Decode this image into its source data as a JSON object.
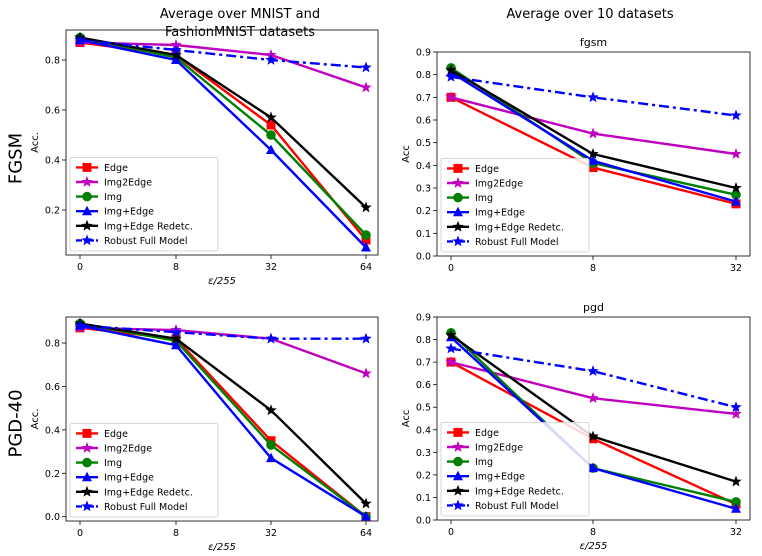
{
  "figure": {
    "col_titles": [
      "Average over MNIST and\nFashionMNIST datasets",
      "Average over 10 datasets"
    ],
    "row_labels": [
      "FGSM",
      "PGD-40"
    ]
  },
  "colors": {
    "Edge": "#ff0000",
    "Img2Edge": "#bf00bf",
    "Img": "#008000",
    "Img+Edge": "#0000ff",
    "Img+Edge Redetc.": "#000000",
    "Robust Full Model": "#0000ff"
  },
  "markers": {
    "Edge": "square",
    "Img2Edge": "star",
    "Img": "circle",
    "Img+Edge": "triangle",
    "Img+Edge Redetc.": "star",
    "Robust Full Model": "star"
  },
  "chart_data": [
    {
      "type": "line",
      "title": "",
      "xlabel": "ε/255",
      "ylabel": "Acc.",
      "categories": [
        "0",
        "8",
        "32",
        "64"
      ],
      "ylim": [
        0.02,
        0.92
      ],
      "yticks": [
        0.2,
        0.4,
        0.6,
        0.8
      ],
      "ytick_labels": [
        "0.2",
        "0.4",
        "0.6",
        "0.8"
      ],
      "legend": "lower-left",
      "series": [
        {
          "name": "Edge",
          "values": [
            0.87,
            0.82,
            0.54,
            0.08
          ]
        },
        {
          "name": "Img2Edge",
          "values": [
            0.87,
            0.86,
            0.82,
            0.69
          ]
        },
        {
          "name": "Img",
          "values": [
            0.89,
            0.81,
            0.5,
            0.1
          ]
        },
        {
          "name": "Img+Edge",
          "values": [
            0.88,
            0.8,
            0.44,
            0.05
          ]
        },
        {
          "name": "Img+Edge Redetc.",
          "values": [
            0.89,
            0.82,
            0.57,
            0.21
          ]
        },
        {
          "name": "Robust Full Model",
          "values": [
            0.88,
            0.84,
            0.8,
            0.77
          ]
        }
      ]
    },
    {
      "type": "line",
      "title": "fgsm",
      "xlabel": "",
      "ylabel": "Acc",
      "categories": [
        "0",
        "8",
        "32"
      ],
      "ylim": [
        0.0,
        0.9
      ],
      "yticks": [
        0.0,
        0.1,
        0.2,
        0.3,
        0.4,
        0.5,
        0.6,
        0.7,
        0.8,
        0.9
      ],
      "ytick_labels": [
        "0.0",
        "0.1",
        "0.2",
        "0.3",
        "0.4",
        "0.5",
        "0.6",
        "0.7",
        "0.8",
        "0.9"
      ],
      "legend": "lower-left",
      "series": [
        {
          "name": "Edge",
          "values": [
            0.7,
            0.39,
            0.23
          ]
        },
        {
          "name": "Img2Edge",
          "values": [
            0.7,
            0.54,
            0.45
          ]
        },
        {
          "name": "Img",
          "values": [
            0.83,
            0.41,
            0.27
          ]
        },
        {
          "name": "Img+Edge",
          "values": [
            0.81,
            0.42,
            0.24
          ]
        },
        {
          "name": "Img+Edge Redetc.",
          "values": [
            0.82,
            0.45,
            0.3
          ]
        },
        {
          "name": "Robust Full Model",
          "values": [
            0.79,
            0.7,
            0.62
          ]
        }
      ]
    },
    {
      "type": "line",
      "title": "",
      "xlabel": "ε/255",
      "ylabel": "Acc.",
      "categories": [
        "0",
        "8",
        "32",
        "64"
      ],
      "ylim": [
        -0.02,
        0.92
      ],
      "yticks": [
        0.0,
        0.2,
        0.4,
        0.6,
        0.8
      ],
      "ytick_labels": [
        "0.0",
        "0.2",
        "0.4",
        "0.6",
        "0.8"
      ],
      "legend": "lower-left",
      "series": [
        {
          "name": "Edge",
          "values": [
            0.87,
            0.82,
            0.35,
            0.0
          ]
        },
        {
          "name": "Img2Edge",
          "values": [
            0.87,
            0.86,
            0.82,
            0.66
          ]
        },
        {
          "name": "Img",
          "values": [
            0.89,
            0.81,
            0.33,
            0.0
          ]
        },
        {
          "name": "Img+Edge",
          "values": [
            0.88,
            0.79,
            0.27,
            0.0
          ]
        },
        {
          "name": "Img+Edge Redetc.",
          "values": [
            0.89,
            0.82,
            0.49,
            0.06
          ]
        },
        {
          "name": "Robust Full Model",
          "values": [
            0.88,
            0.85,
            0.82,
            0.82
          ]
        }
      ]
    },
    {
      "type": "line",
      "title": "pgd",
      "xlabel": "ε/255",
      "ylabel": "Acc",
      "categories": [
        "0",
        "8",
        "32"
      ],
      "ylim": [
        0.0,
        0.9
      ],
      "yticks": [
        0.0,
        0.1,
        0.2,
        0.3,
        0.4,
        0.5,
        0.6,
        0.7,
        0.8,
        0.9
      ],
      "ytick_labels": [
        "0.0",
        "0.1",
        "0.2",
        "0.3",
        "0.4",
        "0.5",
        "0.6",
        "0.7",
        "0.8",
        "0.9"
      ],
      "legend": "lower-left",
      "series": [
        {
          "name": "Edge",
          "values": [
            0.7,
            0.36,
            0.07
          ]
        },
        {
          "name": "Img2Edge",
          "values": [
            0.7,
            0.54,
            0.47
          ]
        },
        {
          "name": "Img",
          "values": [
            0.83,
            0.23,
            0.08
          ]
        },
        {
          "name": "Img+Edge",
          "values": [
            0.81,
            0.23,
            0.05
          ]
        },
        {
          "name": "Img+Edge Redetc.",
          "values": [
            0.82,
            0.37,
            0.17
          ]
        },
        {
          "name": "Robust Full Model",
          "values": [
            0.76,
            0.66,
            0.5
          ]
        }
      ]
    }
  ]
}
